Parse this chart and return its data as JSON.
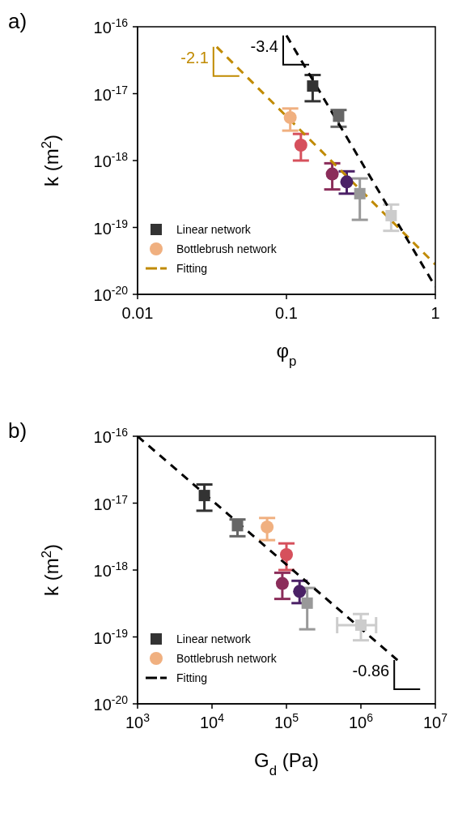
{
  "chart_data": [
    {
      "type": "scatter",
      "title": "a)",
      "xlabel": "φ$_{p}$",
      "ylabel": "k (m$^{2}$)",
      "log": "xy",
      "legend": "bottom left",
      "xlim": [
        0.01,
        1
      ],
      "xticks": [
        0.01,
        0.1,
        1
      ],
      "ylim": [
        1e-20,
        1e-16
      ],
      "yticks": [
        {
          "value": 1e-20,
          "label": "10$^{-20}$"
        },
        {
          "value": 1e-19,
          "label": "10$^{-19}$"
        },
        {
          "value": 1e-18,
          "label": "10$^{-18}$"
        },
        {
          "value": 1e-17,
          "label": "10$^{-17}$"
        },
        {
          "value": 1e-16,
          "label": "10$^{-16}$"
        }
      ],
      "annotations": [
        "-2.1",
        "-3.4"
      ],
      "series": [
        {
          "name": "Linear network",
          "type": "scatter",
          "marker": "square",
          "color": "#333333",
          "colors": [
            "#333333",
            "#666666",
            "#999999",
            "#cccccc"
          ],
          "x": [
            0.15,
            0.224,
            0.311,
            0.505
          ],
          "values": [
            1.3e-17,
            4.6e-18,
            3.2e-19,
            1.5e-19
          ],
          "errors": [
            [
              7.7e-18,
              1.9e-17
            ],
            [
              3.2e-18,
              5.7e-18
            ],
            [
              1.3e-19,
              5.4e-19
            ],
            [
              8.9e-20,
              2.2e-19
            ]
          ]
        },
        {
          "name": "Bottlebrush network",
          "type": "scatter",
          "marker": "circle",
          "color": "#f0b080",
          "colors": [
            "#f0b080",
            "#d6505c",
            "#8b2d5a",
            "#4b2166"
          ],
          "x": [
            0.106,
            0.125,
            0.203,
            0.254
          ],
          "values": [
            4.4e-18,
            1.7e-18,
            6.3e-19,
            4.8e-19
          ],
          "errors": [
            [
              2.8e-18,
              6e-18
            ],
            [
              1e-18,
              2.5e-18
            ],
            [
              3.7e-19,
              9.1e-19
            ],
            [
              3.2e-19,
              6.9e-19
            ]
          ]
        },
        {
          "name": "Fitting",
          "type": "line",
          "line_style": "dashed",
          "color": "#c08a00",
          "x": [
            0.034,
            1
          ],
          "values": [
            5e-17,
            2.8e-20
          ]
        },
        {
          "type": "line",
          "line_style": "dashed",
          "color": "#000000",
          "x": [
            0.1,
            1
          ],
          "values": [
            7.4e-17,
            1.3e-20
          ]
        }
      ]
    },
    {
      "type": "scatter",
      "title": "b)",
      "xlabel": "G$_{d}$ (Pa)",
      "ylabel": "k (m$^{2}$)",
      "log": "xy",
      "legend": "bottom left",
      "xlim": [
        1000,
        10000000
      ],
      "xticks": [
        {
          "value": 1000,
          "label": "10$^{3}$"
        },
        {
          "value": 10000,
          "label": "10$^{4}$"
        },
        {
          "value": 100000,
          "label": "10$^{5}$"
        },
        {
          "value": 1000000,
          "label": "10$^{6}$"
        },
        {
          "value": 10000000,
          "label": "10$^{7}$"
        }
      ],
      "ylim": [
        1e-20,
        1e-16
      ],
      "yticks": [
        {
          "value": 1e-20,
          "label": "10$^{-20}$"
        },
        {
          "value": 1e-19,
          "label": "10$^{-19}$"
        },
        {
          "value": 1e-18,
          "label": "10$^{-18}$"
        },
        {
          "value": 1e-17,
          "label": "10$^{-17}$"
        },
        {
          "value": 1e-16,
          "label": "10$^{-16}$"
        }
      ],
      "annotations": [
        "-0.86"
      ],
      "series": [
        {
          "name": "Linear network",
          "type": "scatter",
          "marker": "square",
          "color": "#333333",
          "colors": [
            "#333333",
            "#666666",
            "#999999",
            "#cccccc"
          ],
          "x": [
            7900,
            22000,
            190000,
            1000000
          ],
          "values": [
            1.3e-17,
            4.6e-18,
            3.2e-19,
            1.5e-19
          ],
          "errors": [
            [
              7.7e-18,
              1.9e-17
            ],
            [
              3.2e-18,
              5.7e-18
            ],
            [
              1.3e-19,
              5.4e-19
            ],
            [
              8.9e-20,
              2.2e-19
            ]
          ],
          "xerrors": [
            null,
            null,
            null,
            [
              480000,
              1600000
            ]
          ]
        },
        {
          "name": "Bottlebrush network",
          "type": "scatter",
          "marker": "circle",
          "color": "#f0b080",
          "colors": [
            "#f0b080",
            "#d6505c",
            "#8b2d5a",
            "#4b2166"
          ],
          "x": [
            55000,
            100000,
            88000,
            150000
          ],
          "values": [
            4.4e-18,
            1.7e-18,
            6.3e-19,
            4.8e-19
          ],
          "errors": [
            [
              2.8e-18,
              6e-18
            ],
            [
              1e-18,
              2.5e-18
            ],
            [
              3.7e-19,
              9.1e-19
            ],
            [
              3.2e-19,
              6.9e-19
            ]
          ]
        },
        {
          "name": "Fitting",
          "type": "line",
          "line_style": "dashed",
          "color": "#000000",
          "x": [
            1000,
            3100000
          ],
          "values": [
            1e-16,
            4.5e-20
          ]
        }
      ]
    }
  ]
}
